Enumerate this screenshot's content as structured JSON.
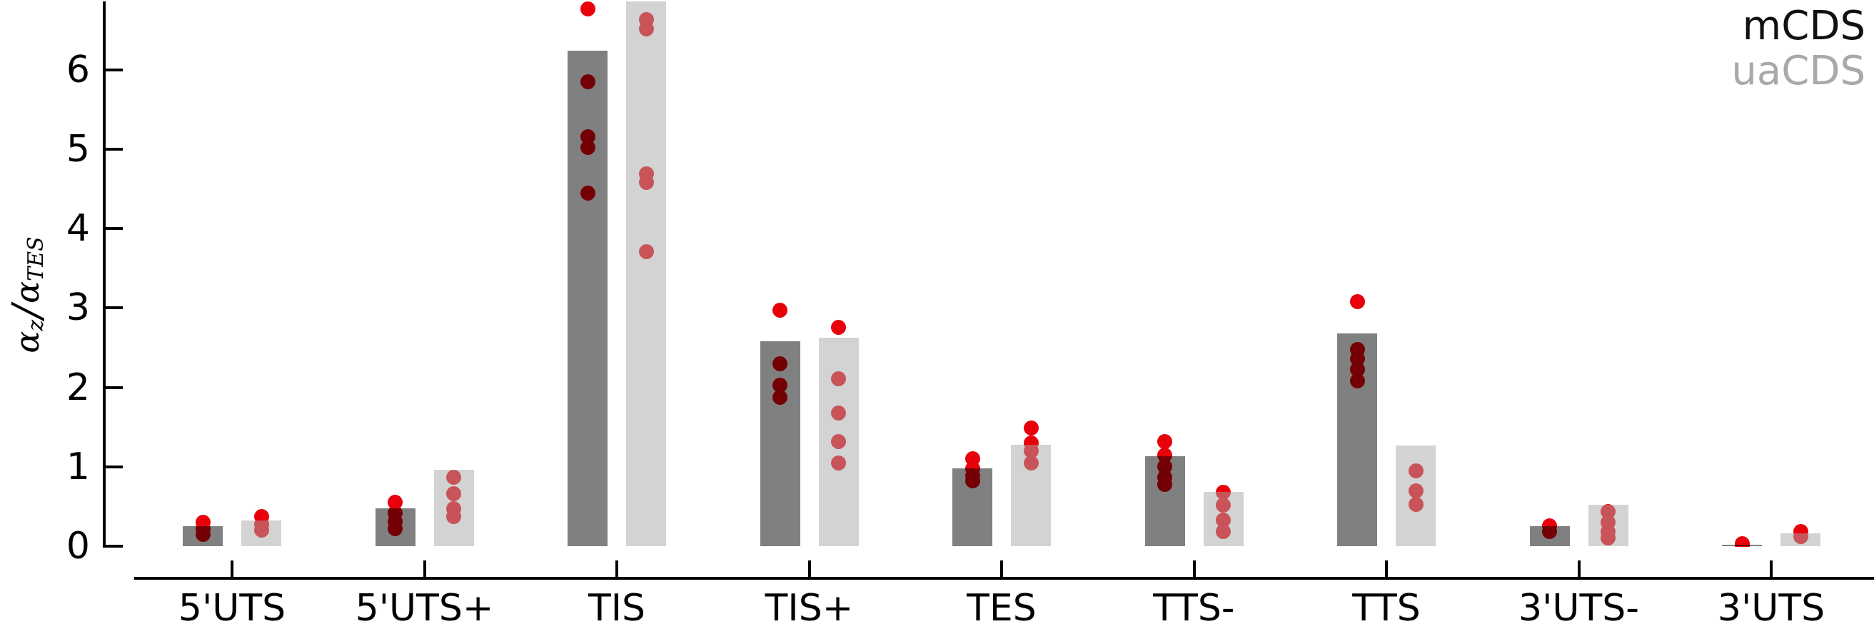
{
  "legend": {
    "series_labels": [
      "mCDS",
      "uaCDS"
    ],
    "series_label_colors": [
      "#111111",
      "#a9a9a9"
    ]
  },
  "y_axis": {
    "label_alpha1": "α",
    "label_sub1": "z",
    "label_slash": "/",
    "label_alpha2": "α",
    "label_sub2": "TES"
  },
  "chart_data": {
    "type": "bar",
    "title": "",
    "xlabel": "",
    "ylabel": "α_z/α_TES",
    "ylim": [
      0,
      6.9
    ],
    "yticks": [
      0,
      1,
      2,
      3,
      4,
      5,
      6
    ],
    "grid": false,
    "legend_position": "top-right",
    "point_color": "#e8000b",
    "categories": [
      "5'UTS",
      "5'UTS+",
      "TIS",
      "TIS+",
      "TES",
      "TTS-",
      "TTS",
      "3'UTS-",
      "3'UTS"
    ],
    "series": [
      {
        "name": "mCDS",
        "apparent_color": "#808080",
        "values": [
          0.25,
          0.48,
          6.24,
          2.58,
          0.98,
          1.13,
          2.68,
          0.25,
          0.01
        ],
        "points": [
          [
            0.3,
            0.22,
            0.15
          ],
          [
            0.55,
            0.42,
            0.31,
            0.22
          ],
          [
            6.77,
            5.85,
            5.16,
            5.02,
            4.45
          ],
          [
            2.97,
            2.3,
            2.03,
            1.88
          ],
          [
            1.1,
            0.98,
            0.89,
            0.82
          ],
          [
            1.32,
            1.15,
            1.0,
            0.87,
            0.78
          ],
          [
            3.08,
            2.48,
            2.36,
            2.23,
            2.08
          ],
          [
            0.26,
            0.18
          ],
          [
            0.03,
            0.01
          ]
        ]
      },
      {
        "name": "uaCDS",
        "apparent_color": "#d3d3d3",
        "values": [
          0.32,
          0.96,
          6.86,
          2.63,
          1.28,
          0.68,
          1.27,
          0.52,
          0.16
        ],
        "points": [
          [
            0.37,
            0.27,
            0.2
          ],
          [
            0.87,
            0.66,
            0.47,
            0.37
          ],
          [
            6.63,
            6.52,
            4.69,
            4.58,
            3.71
          ],
          [
            2.76,
            2.11,
            1.68,
            1.32,
            1.05
          ],
          [
            1.49,
            1.3,
            1.2,
            1.05
          ],
          [
            0.68,
            0.52,
            0.33,
            0.18
          ],
          [
            0.95,
            0.7,
            0.53
          ],
          [
            0.44,
            0.3,
            0.18,
            0.1
          ],
          [
            0.18,
            0.12
          ]
        ]
      }
    ]
  }
}
